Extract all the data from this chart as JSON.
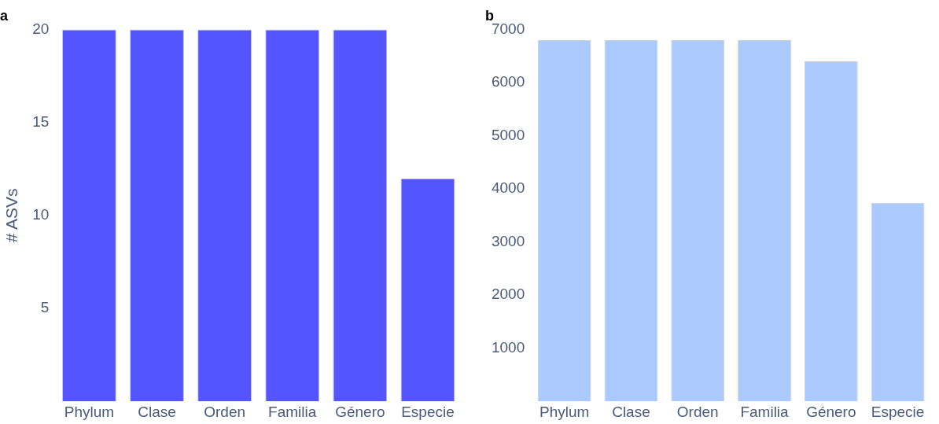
{
  "chart_data": [
    {
      "type": "bar",
      "title": "a",
      "ylabel": "# ASVs",
      "categories": [
        "Phylum",
        "Clase",
        "Orden",
        "Familia",
        "Género",
        "Especie"
      ],
      "values": [
        20,
        20,
        20,
        20,
        20,
        12
      ],
      "color": "#5555ff",
      "ylim": [
        0,
        20
      ],
      "yticks": [
        5,
        10,
        15,
        20
      ],
      "grid": false,
      "legend": false
    },
    {
      "type": "bar",
      "title": "b",
      "categories": [
        "Phylum",
        "Clase",
        "Orden",
        "Familia",
        "Género",
        "Especie"
      ],
      "values": [
        6800,
        6800,
        6800,
        6800,
        6400,
        3740
      ],
      "color": "#aac9fc",
      "ylim": [
        0,
        7000
      ],
      "yticks": [
        1000,
        2000,
        3000,
        4000,
        5000,
        6000,
        7000
      ],
      "grid": false,
      "legend": false
    }
  ]
}
